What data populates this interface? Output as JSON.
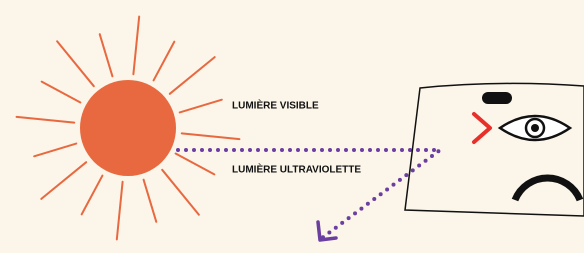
{
  "labels": {
    "visible": "LUMIÈRE VISIBLE",
    "ultraviolet": "LUMIÈRE ULTRAVIOLETTE"
  }
}
